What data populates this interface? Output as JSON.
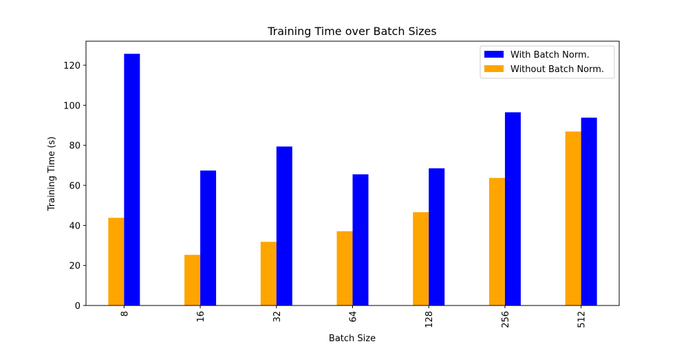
{
  "chart_data": {
    "type": "bar",
    "title": "Training Time over Batch Sizes",
    "xlabel": "Batch Size",
    "ylabel": "Training Time (s)",
    "categories": [
      "8",
      "16",
      "32",
      "64",
      "128",
      "256",
      "512"
    ],
    "series": [
      {
        "name": "Without Batch Norm.",
        "color": "#ffa500",
        "values": [
          43.8,
          25.3,
          31.8,
          37.1,
          46.6,
          63.7,
          86.9
        ]
      },
      {
        "name": "With Batch Norm.",
        "color": "#0000ff",
        "values": [
          125.7,
          67.4,
          79.4,
          65.5,
          68.5,
          96.5,
          93.8
        ]
      }
    ],
    "legend_order": [
      1,
      0
    ],
    "yticks": [
      0,
      20,
      40,
      60,
      80,
      100,
      120
    ],
    "ylim": [
      0,
      132
    ],
    "grid": false,
    "legend_position": "top-right",
    "xtick_rotation": "vertical"
  }
}
